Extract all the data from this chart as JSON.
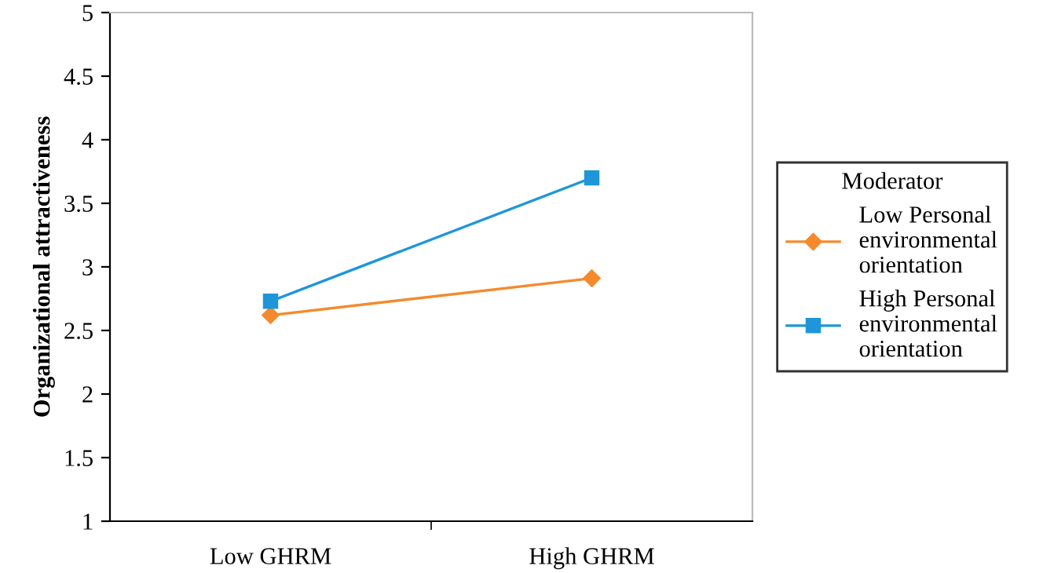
{
  "chart_data": {
    "type": "line",
    "ylabel": "Organizational attractiveness",
    "legend_title": "Moderator",
    "categories": [
      "Low GHRM",
      "High GHRM"
    ],
    "series": [
      {
        "name": "Low Personal environmental orientation",
        "color": "#f58a2c",
        "marker": "diamond",
        "values": [
          2.62,
          2.91
        ]
      },
      {
        "name": "High Personal environmental orientation",
        "color": "#1e96d9",
        "marker": "square",
        "values": [
          2.73,
          3.7
        ]
      }
    ],
    "ylim": [
      1,
      5
    ],
    "yticks": [
      1,
      1.5,
      2,
      2.5,
      3,
      3.5,
      4,
      4.5,
      5
    ],
    "grid": false,
    "legend": "right"
  }
}
